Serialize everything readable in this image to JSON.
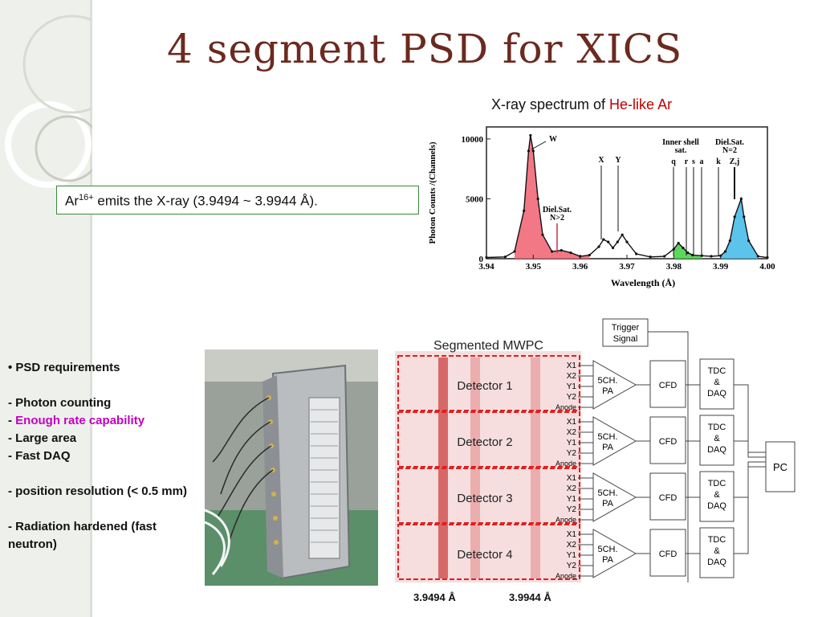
{
  "slide": {
    "title": "4 segment PSD for XICS",
    "chart_caption_prefix": "X-ray spectrum of ",
    "chart_caption_highlight": "He-like Ar",
    "note_prefix": "Ar",
    "note_superscript": "16+",
    "note_suffix": " emits the X-ray (3.9494 ~ 3.9944 Å).",
    "requirements": [
      {
        "text": "• PSD requirements"
      },
      {
        "text": "- Photon counting"
      },
      {
        "text": "- ",
        "highlight": "Enough rate capability"
      },
      {
        "text": "- Large area"
      },
      {
        "text": "- Fast DAQ"
      },
      {
        "text": "- position resolution (< 0.5 mm)"
      },
      {
        "text": "- Radiation hardened (fast neutron)"
      }
    ],
    "wavelength_marks": [
      "3.9494 Å",
      "3.9944 Å"
    ],
    "colors": {
      "title": "#6b2a1f",
      "highlight_red": "#c00000",
      "highlight_magenta": "#c000c0",
      "box_border": "#3a8a3a"
    }
  },
  "chart_data": {
    "type": "line",
    "xlabel": "Wavelength (Å)",
    "ylabel": "Photon Counts /(Channels)",
    "xlim": [
      3.94,
      4.0
    ],
    "ylim": [
      0,
      11000
    ],
    "x_ticks": [
      "3.94",
      "3.95",
      "3.96",
      "3.97",
      "3.98",
      "3.99",
      "4.00"
    ],
    "y_ticks": [
      "0",
      "5000",
      "10000"
    ],
    "annotations": [
      "W",
      "Diel.Sat.",
      "N>2",
      "X",
      "Y",
      "Inner shell",
      "sat.",
      "q",
      "r",
      "s",
      "a",
      "Diel.Sat.",
      "N=2",
      "k",
      "Z,j"
    ],
    "series": [
      {
        "x": [
          3.94,
          3.944,
          3.946,
          3.948,
          3.949,
          3.9494,
          3.95,
          3.951,
          3.952,
          3.954,
          3.956,
          3.958,
          3.96,
          3.962,
          3.964,
          3.965,
          3.966,
          3.967,
          3.968,
          3.969,
          3.97,
          3.972,
          3.975,
          3.978,
          3.98,
          3.981,
          3.982,
          3.983,
          3.984,
          3.986,
          3.988,
          3.99,
          3.991,
          3.992,
          3.993,
          3.9944,
          3.995,
          3.996,
          3.998,
          4.0
        ],
        "values": [
          100,
          150,
          600,
          4000,
          9000,
          10300,
          9000,
          5000,
          2000,
          600,
          700,
          500,
          200,
          300,
          1000,
          1600,
          1400,
          900,
          1400,
          2000,
          1400,
          400,
          150,
          200,
          800,
          1300,
          900,
          500,
          300,
          250,
          200,
          250,
          600,
          1500,
          3500,
          5000,
          3500,
          1500,
          200,
          100
        ]
      }
    ],
    "shaded_peaks": [
      {
        "color": "#f06070",
        "from": 3.945,
        "to": 3.962
      },
      {
        "color": "#40d040",
        "from": 3.979,
        "to": 3.986
      },
      {
        "color": "#40b8e8",
        "from": 3.99,
        "to": 3.998
      }
    ]
  },
  "diagram": {
    "heading": "Segmented MWPC",
    "trigger": [
      "Trigger",
      "Signal"
    ],
    "detectors": [
      "Detector 1",
      "Detector 2",
      "Detector 3",
      "Detector 4"
    ],
    "channels": [
      "X1",
      "X2",
      "Y1",
      "Y2",
      "Anode"
    ],
    "pa_label": [
      "5CH.",
      "PA"
    ],
    "cfd_label": "CFD",
    "tdc_label": [
      "TDC",
      "&",
      "DAQ"
    ],
    "pc_label": "PC"
  }
}
